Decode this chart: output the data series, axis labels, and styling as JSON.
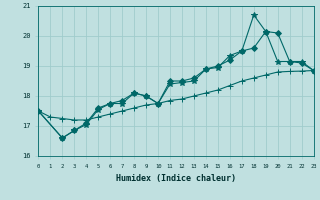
{
  "xlabel": "Humidex (Indice chaleur)",
  "background_color": "#c0e0e0",
  "grid_color": "#a0cccc",
  "line_color": "#006868",
  "xmin": 0,
  "xmax": 23,
  "ymin": 16,
  "ymax": 21,
  "x_ticks": [
    0,
    1,
    2,
    3,
    4,
    5,
    6,
    7,
    8,
    9,
    10,
    11,
    12,
    13,
    14,
    15,
    16,
    17,
    18,
    19,
    20,
    21,
    22,
    23
  ],
  "y_ticks": [
    16,
    17,
    18,
    19,
    20,
    21
  ],
  "series": [
    {
      "x": [
        0,
        1,
        2,
        3,
        4,
        5,
        6,
        7,
        8,
        9,
        10,
        11,
        12,
        13,
        14,
        15,
        16,
        17,
        18,
        19,
        20,
        21,
        22,
        23
      ],
      "y": [
        17.5,
        17.3,
        17.25,
        17.2,
        17.2,
        17.3,
        17.4,
        17.5,
        17.6,
        17.7,
        17.75,
        17.85,
        17.9,
        18.0,
        18.1,
        18.2,
        18.35,
        18.5,
        18.6,
        18.7,
        18.8,
        18.82,
        18.83,
        18.85
      ],
      "marker": "+"
    },
    {
      "x": [
        0,
        2,
        3,
        4,
        5,
        6,
        7,
        8,
        9,
        10,
        11,
        12,
        13,
        14,
        15,
        16,
        17,
        18,
        19,
        20,
        21,
        22,
        23
      ],
      "y": [
        17.5,
        16.6,
        16.85,
        17.1,
        17.6,
        17.75,
        17.85,
        18.1,
        18.0,
        17.75,
        18.5,
        18.5,
        18.6,
        18.9,
        19.0,
        19.2,
        19.5,
        19.6,
        20.15,
        20.1,
        19.15,
        19.1,
        18.85
      ],
      "marker": "D"
    },
    {
      "x": [
        0,
        2,
        3,
        4,
        5,
        6,
        7,
        8,
        9,
        10,
        11,
        12,
        13,
        14,
        15,
        16,
        17,
        18,
        19,
        20,
        21,
        22,
        23
      ],
      "y": [
        17.5,
        16.6,
        16.85,
        17.05,
        17.55,
        17.75,
        17.75,
        18.1,
        18.0,
        17.75,
        18.4,
        18.45,
        18.5,
        18.9,
        18.95,
        19.35,
        19.5,
        20.7,
        20.15,
        19.15,
        19.15,
        19.15,
        18.85
      ],
      "marker": "*"
    }
  ]
}
